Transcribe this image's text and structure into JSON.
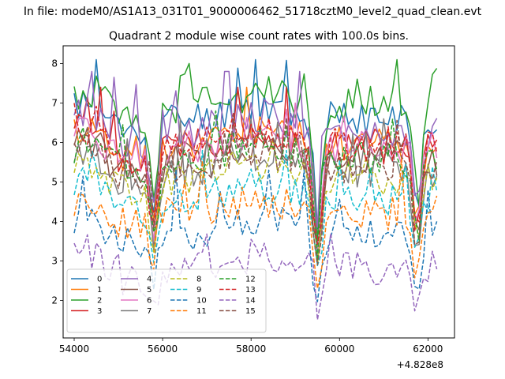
{
  "chart_data": {
    "type": "line",
    "suptitle": "In file: modeM0/AS1A13_031T01_9000006462_51718cztM0_level2_quad_clean.evt",
    "title": "Quadrant 2 module wise count rates with 100.0s bins.",
    "xlabel": "",
    "ylabel": "",
    "x_offset_label": "+4.828e8",
    "xlim": [
      53750,
      62600
    ],
    "ylim": [
      1.05,
      8.45
    ],
    "x_ticks": [
      54000,
      56000,
      58000,
      60000,
      62000
    ],
    "x_tick_labels": [
      "54000",
      "56000",
      "58000",
      "60000",
      "62000"
    ],
    "y_ticks": [
      2,
      3,
      4,
      5,
      6,
      7,
      8
    ],
    "y_tick_labels": [
      "2",
      "3",
      "4",
      "5",
      "6",
      "7",
      "8"
    ],
    "grid": false,
    "legend": {
      "position": "lower-left",
      "columns": 4
    },
    "x": {
      "start": 54000,
      "step": 100,
      "count": 83
    },
    "dip_centers": [
      55800,
      59500,
      61750
    ],
    "series": [
      {
        "name": "0",
        "color": "#1f77b4",
        "dash": "solid",
        "values_summary": {
          "mean": 6.6,
          "range": [
            3.4,
            8.1
          ]
        }
      },
      {
        "name": "1",
        "color": "#ff7f0e",
        "dash": "solid",
        "values_summary": {
          "mean": 6.0,
          "range": [
            3.2,
            7.4
          ]
        }
      },
      {
        "name": "2",
        "color": "#2ca02c",
        "dash": "solid",
        "values_summary": {
          "mean": 6.9,
          "range": [
            3.5,
            8.1
          ]
        }
      },
      {
        "name": "3",
        "color": "#d62728",
        "dash": "solid",
        "values_summary": {
          "mean": 5.9,
          "range": [
            3.3,
            7.4
          ]
        }
      },
      {
        "name": "4",
        "color": "#9467bd",
        "dash": "solid",
        "values_summary": {
          "mean": 6.3,
          "range": [
            3.4,
            7.8
          ]
        }
      },
      {
        "name": "5",
        "color": "#8c564b",
        "dash": "solid",
        "values_summary": {
          "mean": 5.6,
          "range": [
            3.1,
            6.9
          ]
        }
      },
      {
        "name": "6",
        "color": "#e377c2",
        "dash": "solid",
        "values_summary": {
          "mean": 5.9,
          "range": [
            3.2,
            7.0
          ]
        }
      },
      {
        "name": "7",
        "color": "#7f7f7f",
        "dash": "solid",
        "values_summary": {
          "mean": 5.3,
          "range": [
            3.0,
            6.6
          ]
        }
      },
      {
        "name": "8",
        "color": "#bcbd22",
        "dash": "dashed",
        "values_summary": {
          "mean": 5.1,
          "range": [
            2.9,
            6.3
          ]
        }
      },
      {
        "name": "9",
        "color": "#17becf",
        "dash": "dashed",
        "values_summary": {
          "mean": 4.6,
          "range": [
            2.6,
            5.8
          ]
        }
      },
      {
        "name": "10",
        "color": "#1f77b4",
        "dash": "dashed",
        "values_summary": {
          "mean": 3.7,
          "range": [
            1.9,
            5.3
          ]
        }
      },
      {
        "name": "11",
        "color": "#ff7f0e",
        "dash": "dashed",
        "values_summary": {
          "mean": 4.2,
          "range": [
            2.3,
            5.6
          ]
        }
      },
      {
        "name": "12",
        "color": "#2ca02c",
        "dash": "dashed",
        "values_summary": {
          "mean": 5.6,
          "range": [
            3.0,
            6.8
          ]
        }
      },
      {
        "name": "13",
        "color": "#d62728",
        "dash": "dashed",
        "values_summary": {
          "mean": 5.9,
          "range": [
            3.1,
            7.0
          ]
        }
      },
      {
        "name": "14",
        "color": "#9467bd",
        "dash": "dashed",
        "values_summary": {
          "mean": 2.8,
          "range": [
            1.4,
            3.7
          ]
        }
      },
      {
        "name": "15",
        "color": "#8c564b",
        "dash": "dashed",
        "values_summary": {
          "mean": 5.4,
          "range": [
            2.9,
            6.7
          ]
        }
      }
    ]
  }
}
